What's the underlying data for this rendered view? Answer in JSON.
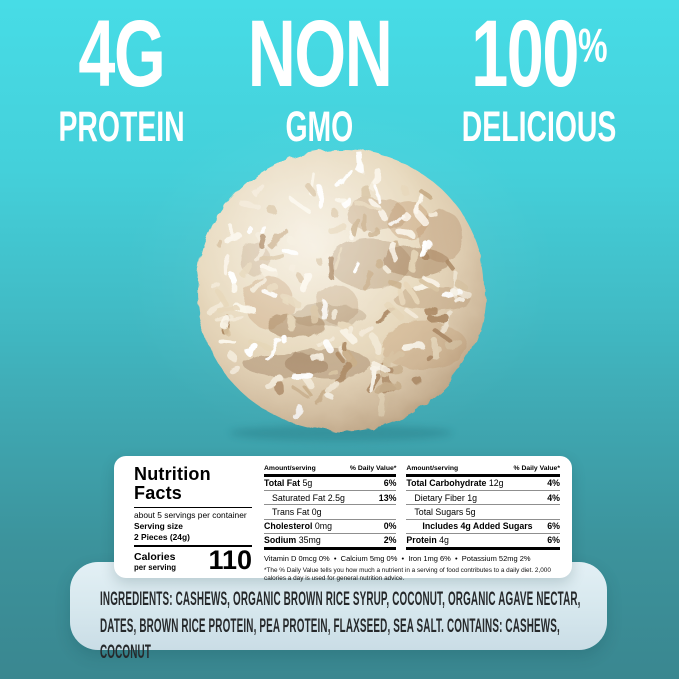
{
  "badges": [
    {
      "line1": "4G",
      "line2": "PROTEIN"
    },
    {
      "line1": "NON",
      "line2": "GMO"
    },
    {
      "line1": "100",
      "sup": "%",
      "line2": "DELICIOUS"
    }
  ],
  "hero_image": {
    "subject": "coconut-covered protein ball"
  },
  "nutrition": {
    "title_line1": "Nutrition",
    "title_line2": "Facts",
    "servings_text": "about 5 servings per container",
    "serving_size_label": "Serving size",
    "serving_size_value": "2 Pieces (24g)",
    "calories_label": "Calories",
    "calories_sub": "per serving",
    "calories_value": "110",
    "col_header_amount": "Amount/serving",
    "col_header_dv": "% Daily Value*",
    "left_rows": [
      {
        "label": "Total Fat",
        "amount": "5g",
        "dv": "6%",
        "bold": true,
        "indent": 0
      },
      {
        "label": "Saturated Fat",
        "amount": "2.5g",
        "dv": "13%",
        "bold": false,
        "indent": 1
      },
      {
        "label": "Trans Fat",
        "amount": "0g",
        "dv": "",
        "bold": false,
        "indent": 1
      },
      {
        "label": "Cholesterol",
        "amount": "0mg",
        "dv": "0%",
        "bold": true,
        "indent": 0
      },
      {
        "label": "Sodium",
        "amount": "35mg",
        "dv": "2%",
        "bold": true,
        "indent": 0
      }
    ],
    "right_rows": [
      {
        "label": "Total Carbohydrate",
        "amount": "12g",
        "dv": "4%",
        "bold": true,
        "indent": 0
      },
      {
        "label": "Dietary Fiber",
        "amount": "1g",
        "dv": "4%",
        "bold": false,
        "indent": 1
      },
      {
        "label": "Total Sugars",
        "amount": "5g",
        "dv": "",
        "bold": false,
        "indent": 1
      },
      {
        "label": "Includes 4g Added Sugars",
        "amount": "",
        "dv": "6%",
        "bold": true,
        "indent": 2
      },
      {
        "label": "Protein",
        "amount": "4g",
        "dv": "6%",
        "bold": true,
        "indent": 0
      }
    ],
    "micronutrients": [
      "Vitamin D 0mcg 0%",
      "Calcium 5mg 0%",
      "Iron 1mg 6%",
      "Potassium 52mg 2%"
    ],
    "footnote": "*The % Daily Value tells you how much a nutrient in a serving of food contributes to a daily diet. 2,000 calories a day is used for general nutrition advice."
  },
  "ingredients": {
    "label": "INGREDIENTS:",
    "text": "CASHEWS, ORGANIC BROWN RICE SYRUP, COCONUT, ORGANIC AGAVE NECTAR, DATES, BROWN RICE PROTEIN, PEA PROTEIN, FLAXSEED, SEA SALT.",
    "contains_label": "CONTAINS:",
    "contains_text": "CASHEWS, COCONUT"
  },
  "colors": {
    "background_top": "#47dce6",
    "background_bottom": "#3a8790",
    "headline_text": "#ffffff",
    "nutrition_panel": "#ffffff",
    "nutrition_text": "#000000",
    "ingredients_panel": "#d7e8ee",
    "ingredients_text": "#26292b"
  }
}
